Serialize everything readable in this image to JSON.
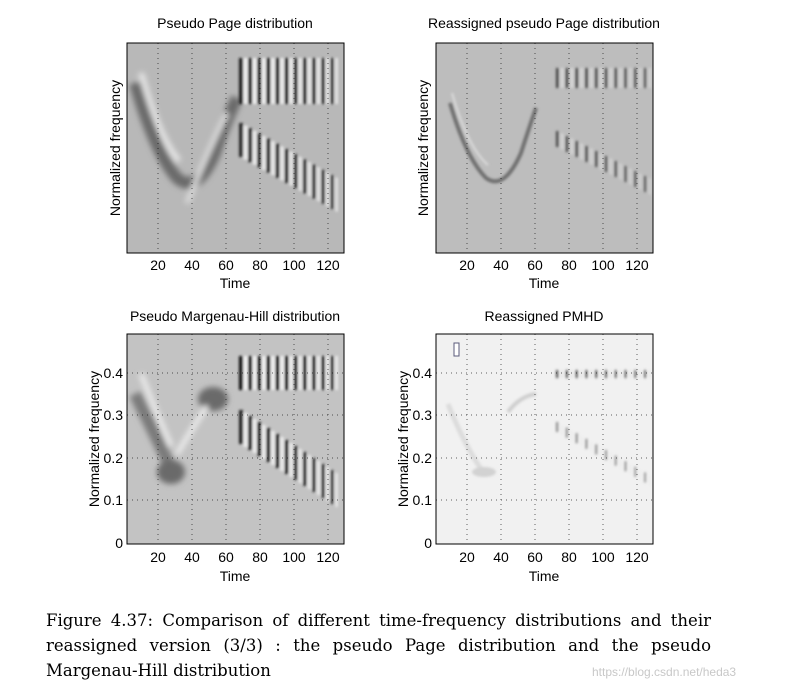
{
  "figure": {
    "caption": "Figure 4.37: Comparison of different time-frequency distributions and their reassigned version (3/3) :  the pseudo Page distribution and the pseudo Margenau-Hill distribution",
    "watermark": "https://blog.csdn.net/heda3"
  },
  "panels": [
    {
      "title": "Pseudo Page distribution",
      "xlabel": "Time",
      "ylabel": "Normalized frequency",
      "xticks": [
        "20",
        "40",
        "60",
        "80",
        "100",
        "120"
      ],
      "yticks": []
    },
    {
      "title": "Reassigned pseudo Page distribution",
      "xlabel": "Time",
      "ylabel": "Normalized frequency",
      "xticks": [
        "20",
        "40",
        "60",
        "80",
        "100",
        "120"
      ],
      "yticks": []
    },
    {
      "title": "Pseudo Margenau-Hill distribution",
      "xlabel": "Time",
      "ylabel": "Normalized frequency",
      "xticks": [
        "20",
        "40",
        "60",
        "80",
        "100",
        "120"
      ],
      "yticks": [
        "0",
        "0.1",
        "0.2",
        "0.3",
        "0.4"
      ]
    },
    {
      "title": "Reassigned PMHD",
      "xlabel": "Time",
      "ylabel": "Normalized frequency",
      "xticks": [
        "20",
        "40",
        "60",
        "80",
        "100",
        "120"
      ],
      "yticks": [
        "0",
        "0.1",
        "0.2",
        "0.3",
        "0.4"
      ]
    }
  ],
  "chart_data": [
    {
      "type": "heatmap",
      "title": "Pseudo Page distribution",
      "xlabel": "Time",
      "ylabel": "Normalized frequency",
      "xlim": [
        0,
        128
      ],
      "ylim": [
        0,
        0.5
      ],
      "grid": true
    },
    {
      "type": "heatmap",
      "title": "Reassigned pseudo Page distribution",
      "xlabel": "Time",
      "ylabel": "Normalized frequency",
      "xlim": [
        0,
        128
      ],
      "ylim": [
        0,
        0.5
      ],
      "grid": true
    },
    {
      "type": "heatmap",
      "title": "Pseudo Margenau-Hill distribution",
      "xlabel": "Time",
      "ylabel": "Normalized frequency",
      "xlim": [
        0,
        128
      ],
      "ylim": [
        0,
        0.5
      ],
      "grid": true
    },
    {
      "type": "heatmap",
      "title": "Reassigned PMHD",
      "xlabel": "Time",
      "ylabel": "Normalized frequency",
      "xlim": [
        0,
        128
      ],
      "ylim": [
        0,
        0.5
      ],
      "grid": true
    }
  ]
}
